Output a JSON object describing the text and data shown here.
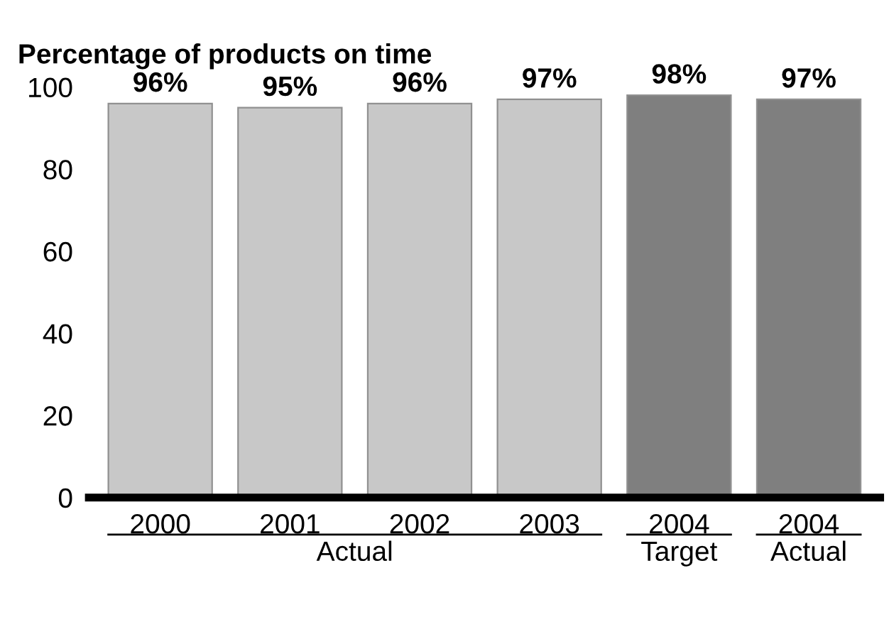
{
  "chart_data": {
    "type": "bar",
    "title": "Percentage of products on time",
    "categories": [
      "2000",
      "2001",
      "2002",
      "2003",
      "2004",
      "2004"
    ],
    "values": [
      96,
      95,
      96,
      97,
      98,
      97
    ],
    "colors": [
      "#c8c8c8",
      "#c8c8c8",
      "#c8c8c8",
      "#c8c8c8",
      "#7f7f7f",
      "#7f7f7f"
    ],
    "value_labels": [
      "96%",
      "95%",
      "96%",
      "97%",
      "98%",
      "97%"
    ],
    "ylim": [
      0,
      100
    ],
    "yticks": [
      0,
      20,
      40,
      60,
      80,
      100
    ],
    "grid": false,
    "legend": false,
    "annotations": [
      "Actual",
      "Target",
      "Actual"
    ]
  }
}
